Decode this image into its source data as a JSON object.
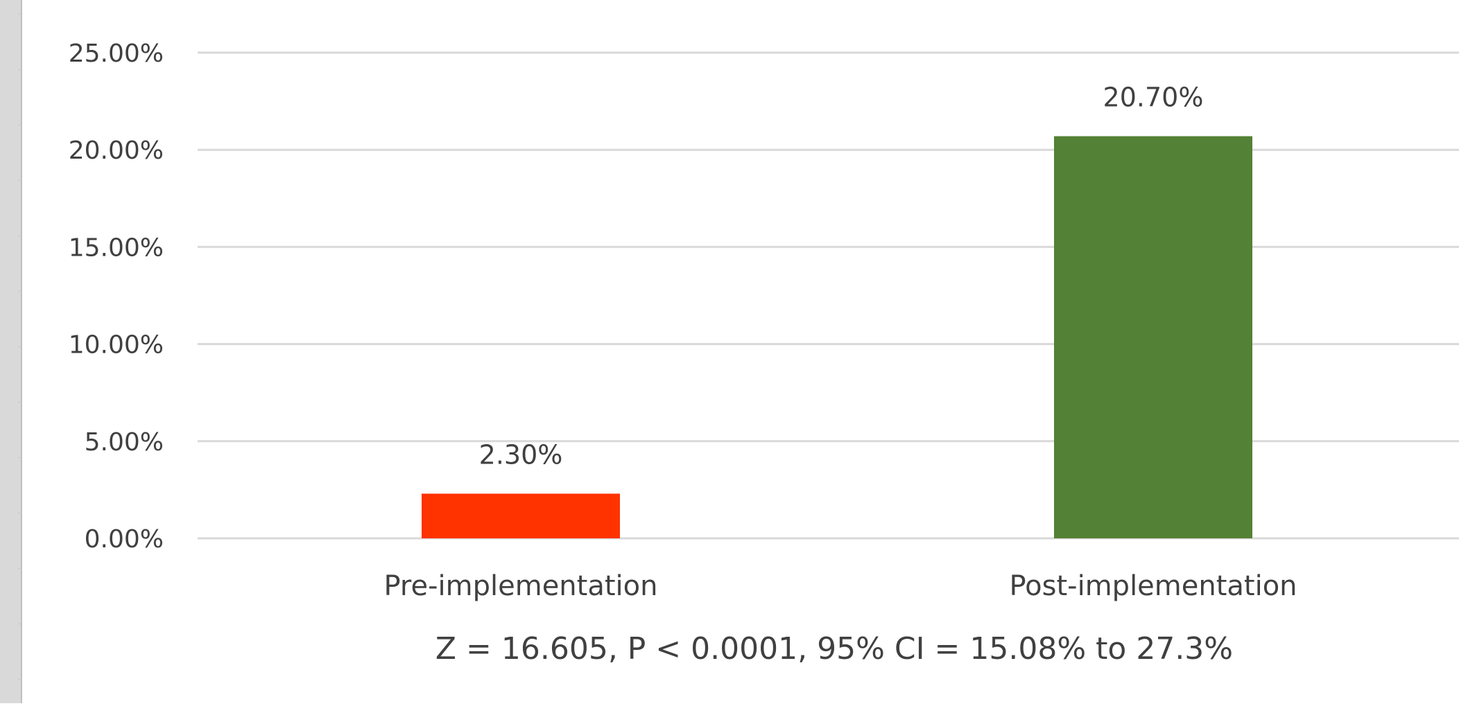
{
  "chart_data": {
    "type": "bar",
    "categories": [
      "Pre-implementation",
      "Post-implementation"
    ],
    "values": [
      2.3,
      20.7
    ],
    "data_labels": [
      "2.30%",
      "20.70%"
    ],
    "colors": [
      "#ff3300",
      "#538135"
    ],
    "ylim": [
      0,
      25
    ],
    "y_ticks": [
      0,
      5,
      10,
      15,
      20,
      25
    ],
    "y_tick_labels": [
      "0.00%",
      "5.00%",
      "10.00%",
      "15.00%",
      "20.00%",
      "25.00%"
    ],
    "grid": true,
    "grid_color": "#d9d9d9",
    "annotation": "Z = 16.605, P < 0.0001, 95% CI = 15.08% to 27.3%",
    "title": "",
    "xlabel": "",
    "ylabel": ""
  }
}
